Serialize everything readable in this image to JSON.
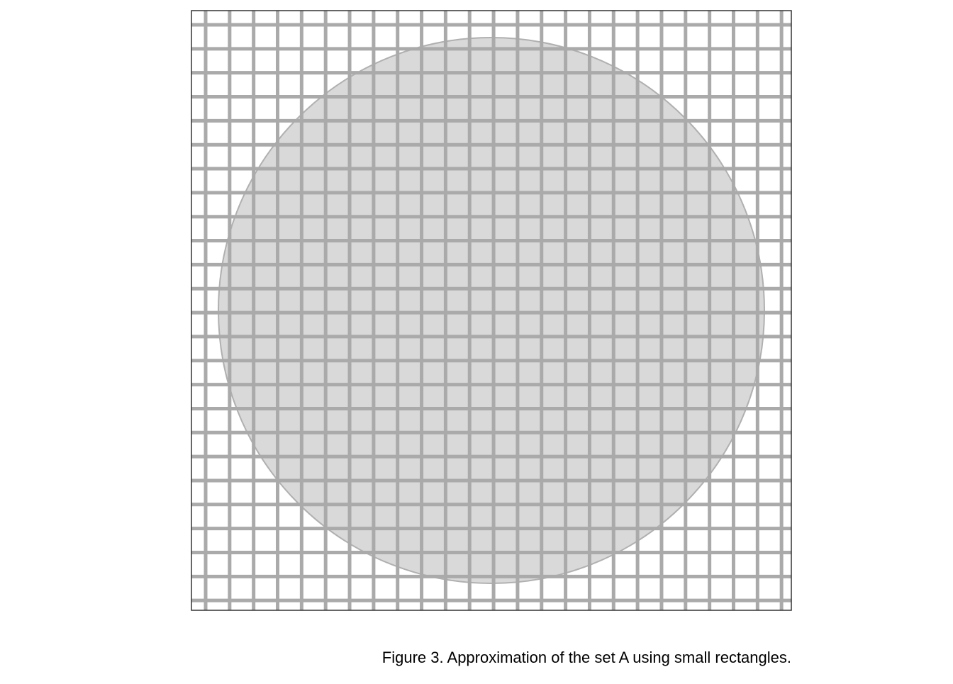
{
  "figure": {
    "caption": "Figure 3. Approximation of the set A using small rectangles."
  },
  "diagram": {
    "shape": "disc",
    "grid_divisions": 25,
    "colors": {
      "frame": "#333333",
      "grid_line": "#aaaaaa",
      "disc_fill": "#d9d9d9",
      "disc_stroke": "#b0b0b0",
      "background": "#ffffff"
    }
  }
}
